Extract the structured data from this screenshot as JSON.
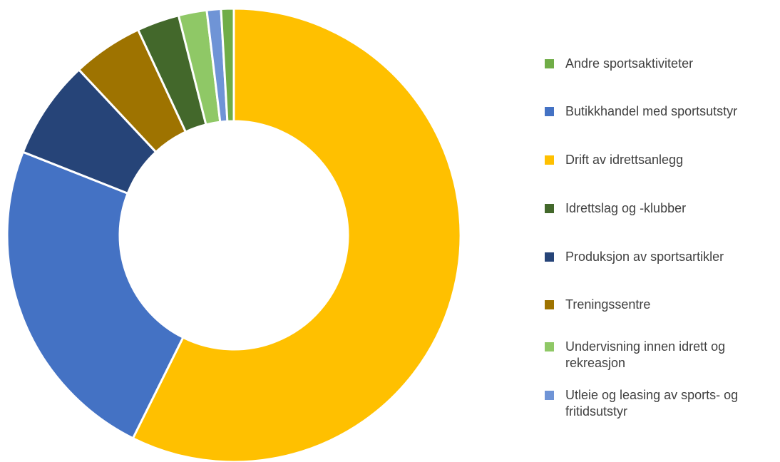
{
  "chart_data": {
    "type": "pie",
    "variant": "donut",
    "title": "",
    "legend_position": "right",
    "slices": [
      {
        "label": "Drift av idrettsanlegg",
        "value": 57.0,
        "color": "#FFC000"
      },
      {
        "label": "Butikkhandel med sportsutstyr",
        "value": 23.5,
        "color": "#4472C4"
      },
      {
        "label": "Produksjon av sportsartikler",
        "value": 7.0,
        "color": "#264478"
      },
      {
        "label": "Treningssentre",
        "value": 5.0,
        "color": "#9E7300"
      },
      {
        "label": "Idrettslag og -klubber",
        "value": 3.0,
        "color": "#43682B"
      },
      {
        "label": "Undervisning innen idrett og rekreasjon",
        "value": 2.0,
        "color": "#8FC866"
      },
      {
        "label": "Utleie og leasing av sports- og fritidsutstyr",
        "value": 1.0,
        "color": "#6F94D6"
      },
      {
        "label": "Andre sportsaktiviteter",
        "value": 0.9,
        "color": "#70AD47"
      }
    ],
    "legend": [
      {
        "label": "Andre sportsaktiviteter",
        "color": "#70AD47"
      },
      {
        "label": "Butikkhandel med sportsutstyr",
        "color": "#4472C4"
      },
      {
        "label": "Drift av idrettsanlegg",
        "color": "#FFC000"
      },
      {
        "label": "Idrettslag og -klubber",
        "color": "#43682B"
      },
      {
        "label": "Produksjon av sportsartikler",
        "color": "#264478"
      },
      {
        "label": "Treningssentre",
        "color": "#9E7300"
      },
      {
        "label": "Undervisning innen idrett og rekreasjon",
        "color": "#8FC866"
      },
      {
        "label": "Utleie og leasing av sports- og fritidsutstyr",
        "color": "#6F94D6"
      }
    ]
  }
}
